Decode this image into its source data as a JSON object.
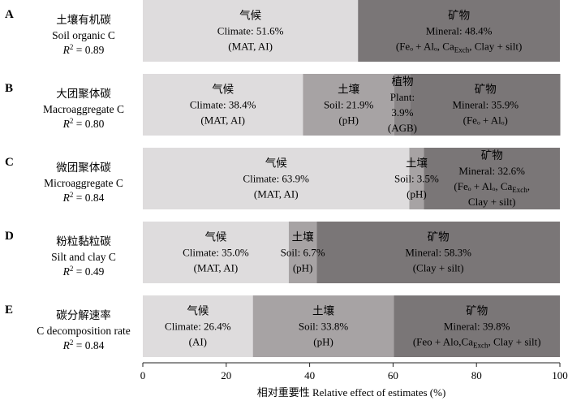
{
  "colors": {
    "climate": "#dedcdd",
    "soil": "#a7a3a4",
    "plant": "#8a8687",
    "mineral": "#7a7677",
    "axis": "#222222"
  },
  "chart_data": {
    "type": "bar",
    "orientation": "horizontal",
    "stacked": true,
    "xlabel": "相对重要性 Relative effect of estimates (%)",
    "xlim": [
      0,
      100
    ],
    "xticks": [
      "0",
      "20",
      "40",
      "60",
      "80",
      "100"
    ],
    "grid": false,
    "legend": "none",
    "rows": [
      {
        "letter": "A",
        "zh": "土壤有机碳",
        "en": "Soil organic C",
        "r2_prefix": "R",
        "r2_sup": "2",
        "r2_value": " = 0.89",
        "segments": [
          {
            "key": "climate",
            "zh": "气候",
            "value": 51.6,
            "lines": [
              "Climate: 51.6%",
              "(MAT, AI)"
            ]
          },
          {
            "key": "mineral",
            "zh": "矿物",
            "value": 48.4,
            "lines": [
              "Mineral: 48.4%",
              "(Feₒ + Alₒ, Ca_Exch, Clay + silt)"
            ]
          }
        ]
      },
      {
        "letter": "B",
        "zh": "大团聚体碳",
        "en": "Macroaggregate C",
        "r2_prefix": "R",
        "r2_sup": "2",
        "r2_value": " = 0.80",
        "segments": [
          {
            "key": "climate",
            "zh": "气候",
            "value": 38.4,
            "lines": [
              "Climate: 38.4%",
              "(MAT, AI)"
            ]
          },
          {
            "key": "soil",
            "zh": "土壤",
            "value": 21.9,
            "lines": [
              "Soil: 21.9%",
              "(pH)"
            ]
          },
          {
            "key": "plant",
            "zh": "植物",
            "value": 3.9,
            "lines": [
              "Plant:",
              "3.9%",
              "(AGB)"
            ]
          },
          {
            "key": "mineral",
            "zh": "矿物",
            "value": 35.9,
            "lines": [
              "Mineral: 35.9%",
              "(Feₒ + Alₒ)"
            ]
          }
        ]
      },
      {
        "letter": "C",
        "zh": "微团聚体碳",
        "en": "Microaggregate C",
        "r2_prefix": "R",
        "r2_sup": "2",
        "r2_value": " = 0.84",
        "segments": [
          {
            "key": "climate",
            "zh": "气候",
            "value": 63.9,
            "lines": [
              "Climate: 63.9%",
              "(MAT, AI)"
            ]
          },
          {
            "key": "soil",
            "zh": "土壤",
            "value": 3.5,
            "lines": [
              "Soil: 3.5%",
              "(pH)"
            ]
          },
          {
            "key": "mineral",
            "zh": "矿物",
            "value": 32.6,
            "lines": [
              "Mineral: 32.6%",
              "(Feₒ + Alₒ, Ca_Exch,",
              "Clay + silt)"
            ]
          }
        ]
      },
      {
        "letter": "D",
        "zh": "粉粒黏粒碳",
        "en": "Silt and clay C",
        "r2_prefix": "R",
        "r2_sup": "2",
        "r2_value": " = 0.49",
        "segments": [
          {
            "key": "climate",
            "zh": "气候",
            "value": 35.0,
            "lines": [
              "Climate: 35.0%",
              "(MAT, AI)"
            ]
          },
          {
            "key": "soil",
            "zh": "土壤",
            "value": 6.7,
            "lines": [
              "Soil: 6.7%",
              "(pH)"
            ]
          },
          {
            "key": "mineral",
            "zh": "矿物",
            "value": 58.3,
            "lines": [
              "Mineral: 58.3%",
              "(Clay + silt)"
            ]
          }
        ]
      },
      {
        "letter": "E",
        "zh": "碳分解速率",
        "en": "C decomposition rate",
        "r2_prefix": "R",
        "r2_sup": "2",
        "r2_value": " = 0.84",
        "segments": [
          {
            "key": "climate",
            "zh": "气候",
            "value": 26.4,
            "lines": [
              "Climate: 26.4%",
              "(AI)"
            ]
          },
          {
            "key": "soil",
            "zh": "土壤",
            "value": 33.8,
            "lines": [
              "Soil: 33.8%",
              "(pH)"
            ]
          },
          {
            "key": "mineral",
            "zh": "矿物",
            "value": 39.8,
            "lines": [
              "Mineral: 39.8%",
              "(Feo + Alo,Ca_Exch, Clay + silt)"
            ]
          }
        ]
      }
    ]
  }
}
